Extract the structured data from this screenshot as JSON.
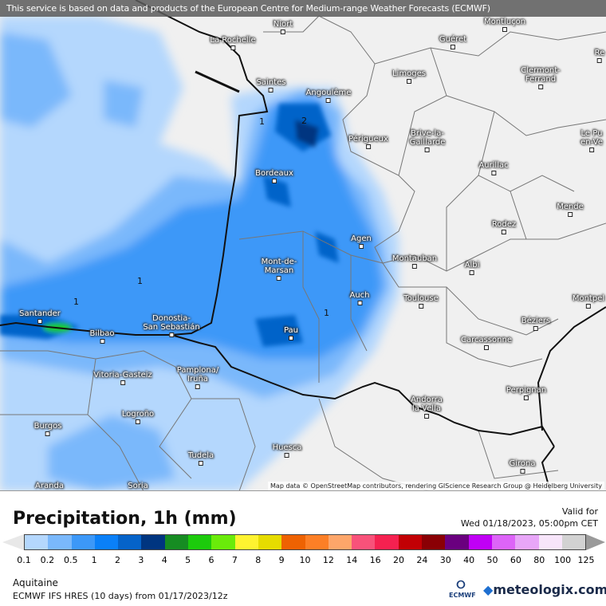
{
  "banner": "This service is based on data and products of the European Centre for Medium-range Weather Forecasts (ECMWF)",
  "attribution": "Map data © OpenStreetMap contributors, rendering GIScience Research Group @ Heidelberg University",
  "cities": [
    {
      "name": "Niort"
    },
    {
      "name": "La Rochelle"
    },
    {
      "name": "Guéret"
    },
    {
      "name": "Montluçon"
    },
    {
      "name": "Limoges"
    },
    {
      "name": "Saintes"
    },
    {
      "name": "Angoulême"
    },
    {
      "name": "Clermont-\nFerrand"
    },
    {
      "name": "Périgueux"
    },
    {
      "name": "Brive-la-\nGaillarde"
    },
    {
      "name": "Le Pu\nen-Ve"
    },
    {
      "name": "Aurillac"
    },
    {
      "name": "Bordeaux"
    },
    {
      "name": "Mende"
    },
    {
      "name": "Rodez"
    },
    {
      "name": "Agen"
    },
    {
      "name": "Montauban"
    },
    {
      "name": "Albi"
    },
    {
      "name": "Mont-de-\nMarsan"
    },
    {
      "name": "Auch"
    },
    {
      "name": "Toulouse"
    },
    {
      "name": "Montpel"
    },
    {
      "name": "Santander"
    },
    {
      "name": "Donostia-\nSan Sebastián"
    },
    {
      "name": "Bilbao"
    },
    {
      "name": "Pau"
    },
    {
      "name": "Béziers"
    },
    {
      "name": "Carcassonne"
    },
    {
      "name": "Vitoria-Gasteiz"
    },
    {
      "name": "Pamplona/\nIruña"
    },
    {
      "name": "Perpignan"
    },
    {
      "name": "Andorra\nla Vella"
    },
    {
      "name": "Burgos"
    },
    {
      "name": "Logroño"
    },
    {
      "name": "Huesca"
    },
    {
      "name": "Tudela"
    },
    {
      "name": "Girona"
    },
    {
      "name": "Aranda"
    },
    {
      "name": "Soria"
    },
    {
      "name": "Re"
    }
  ],
  "contour_labels": [
    "1",
    "2",
    "1",
    "1",
    "1"
  ],
  "legend": {
    "title": "Precipitation, 1h (mm)",
    "valid_label": "Valid for",
    "valid_time": "Wed 01/18/2023, 05:00pm CET",
    "ticks": [
      "0.1",
      "0.2",
      "0.5",
      "1",
      "2",
      "3",
      "4",
      "5",
      "6",
      "7",
      "8",
      "9",
      "10",
      "12",
      "14",
      "16",
      "20",
      "24",
      "30",
      "40",
      "50",
      "60",
      "80",
      "100",
      "125"
    ],
    "colors": [
      "#b4d7fd",
      "#7ab8fb",
      "#3c98f8",
      "#0a80f8",
      "#0563c9",
      "#003580",
      "#168c22",
      "#1ccb0c",
      "#6aeb0a",
      "#fef330",
      "#e6dc00",
      "#ee6202",
      "#fc7f26",
      "#fda66a",
      "#f8527a",
      "#f52150",
      "#c20004",
      "#8a0004",
      "#6a007f",
      "#c000f5",
      "#dd64f8",
      "#e8a6f8",
      "#f7e5fa",
      "#d2d2d2"
    ],
    "under_color": "#e8e8e8",
    "over_color": "#9a9a9a"
  },
  "region": "Aquitaine",
  "model_run": "ECMWF IFS HRES (10 days) from  01/17/2023/12z",
  "logos": {
    "ecmwf": "ECMWF",
    "meteologix": "meteologix.com"
  }
}
